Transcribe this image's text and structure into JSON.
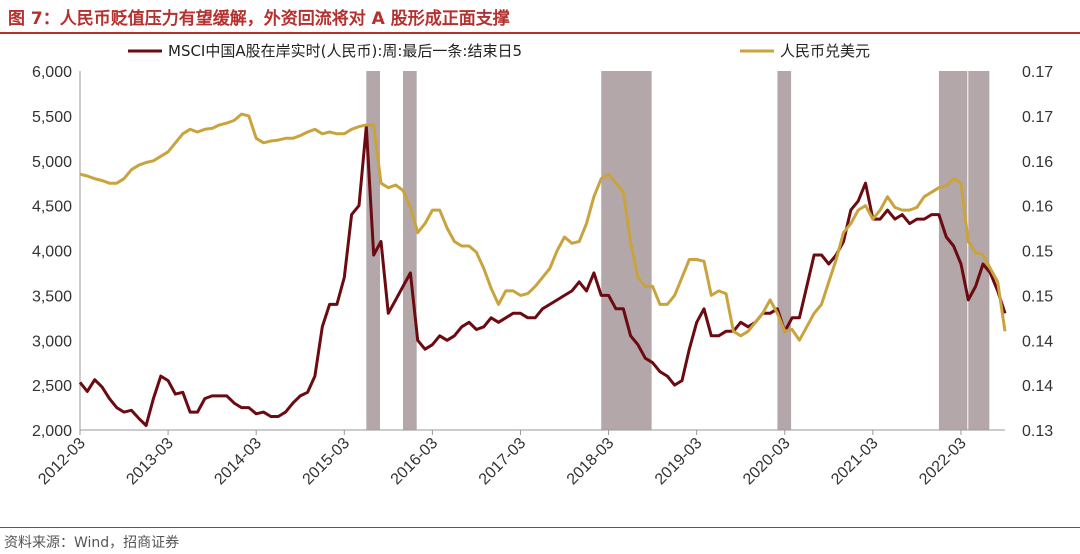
{
  "title": "图 7：人民币贬值压力有望缓解，外资回流将对 A 股形成正面支撑",
  "source": "资料来源：Wind，招商证券",
  "colors": {
    "accent": "#b5312f",
    "msci": "#6b0a10",
    "cny": "#c9a43e",
    "shade": "#b3a7a9"
  },
  "chart_data": {
    "type": "line",
    "y_left": {
      "min": 2000,
      "max": 6000,
      "ticks": [
        "2,000",
        "2,500",
        "3,000",
        "3,500",
        "4,000",
        "4,500",
        "5,000",
        "5,500",
        "6,000"
      ]
    },
    "y_right": {
      "min": 0.13,
      "max": 0.17,
      "ticks": [
        "0.13",
        "0.14",
        "0.14",
        "0.15",
        "0.15",
        "0.16",
        "0.16",
        "0.17",
        "0.17"
      ]
    },
    "x_range": [
      "2012-03",
      "2022-09"
    ],
    "x_ticks": [
      "2012-03",
      "2013-03",
      "2014-03",
      "2015-03",
      "2016-03",
      "2017-03",
      "2018-03",
      "2019-03",
      "2020-03",
      "2021-03",
      "2022-03"
    ],
    "shaded_periods": [
      [
        "2015-06",
        "2015-08"
      ],
      [
        "2015-11",
        "2016-01"
      ],
      [
        "2018-02",
        "2018-09"
      ],
      [
        "2020-02",
        "2020-04"
      ],
      [
        "2021-12",
        "2022-04"
      ],
      [
        "2022-04",
        "2022-07"
      ]
    ],
    "series": [
      {
        "name": "MSCI中国A股在岸实时(人民币):周:最后一条:结束日5",
        "axis": "left",
        "points": [
          [
            "2012-03",
            2530
          ],
          [
            "2012-04",
            2430
          ],
          [
            "2012-05",
            2560
          ],
          [
            "2012-06",
            2480
          ],
          [
            "2012-07",
            2350
          ],
          [
            "2012-08",
            2250
          ],
          [
            "2012-09",
            2200
          ],
          [
            "2012-10",
            2220
          ],
          [
            "2012-11",
            2130
          ],
          [
            "2012-12",
            2050
          ],
          [
            "2013-01",
            2350
          ],
          [
            "2013-02",
            2600
          ],
          [
            "2013-03",
            2550
          ],
          [
            "2013-04",
            2400
          ],
          [
            "2013-05",
            2420
          ],
          [
            "2013-06",
            2200
          ],
          [
            "2013-07",
            2200
          ],
          [
            "2013-08",
            2350
          ],
          [
            "2013-09",
            2380
          ],
          [
            "2013-10",
            2380
          ],
          [
            "2013-11",
            2380
          ],
          [
            "2013-12",
            2300
          ],
          [
            "2014-01",
            2250
          ],
          [
            "2014-02",
            2250
          ],
          [
            "2014-03",
            2180
          ],
          [
            "2014-04",
            2200
          ],
          [
            "2014-05",
            2150
          ],
          [
            "2014-06",
            2150
          ],
          [
            "2014-07",
            2200
          ],
          [
            "2014-08",
            2300
          ],
          [
            "2014-09",
            2380
          ],
          [
            "2014-10",
            2420
          ],
          [
            "2014-11",
            2600
          ],
          [
            "2014-12",
            3150
          ],
          [
            "2015-01",
            3400
          ],
          [
            "2015-02",
            3400
          ],
          [
            "2015-03",
            3700
          ],
          [
            "2015-04",
            4400
          ],
          [
            "2015-05",
            4500
          ],
          [
            "2015-06",
            5380
          ],
          [
            "2015-07",
            3950
          ],
          [
            "2015-08",
            4100
          ],
          [
            "2015-09",
            3300
          ],
          [
            "2015-10",
            3450
          ],
          [
            "2015-11",
            3600
          ],
          [
            "2015-12",
            3750
          ],
          [
            "2016-01",
            3000
          ],
          [
            "2016-02",
            2900
          ],
          [
            "2016-03",
            2950
          ],
          [
            "2016-04",
            3050
          ],
          [
            "2016-05",
            3000
          ],
          [
            "2016-06",
            3050
          ],
          [
            "2016-07",
            3150
          ],
          [
            "2016-08",
            3200
          ],
          [
            "2016-09",
            3120
          ],
          [
            "2016-10",
            3150
          ],
          [
            "2016-11",
            3250
          ],
          [
            "2016-12",
            3200
          ],
          [
            "2017-01",
            3250
          ],
          [
            "2017-02",
            3300
          ],
          [
            "2017-03",
            3300
          ],
          [
            "2017-04",
            3250
          ],
          [
            "2017-05",
            3250
          ],
          [
            "2017-06",
            3350
          ],
          [
            "2017-07",
            3400
          ],
          [
            "2017-08",
            3450
          ],
          [
            "2017-09",
            3500
          ],
          [
            "2017-10",
            3550
          ],
          [
            "2017-11",
            3650
          ],
          [
            "2017-12",
            3550
          ],
          [
            "2018-01",
            3750
          ],
          [
            "2018-02",
            3500
          ],
          [
            "2018-03",
            3500
          ],
          [
            "2018-04",
            3350
          ],
          [
            "2018-05",
            3350
          ],
          [
            "2018-06",
            3050
          ],
          [
            "2018-07",
            2950
          ],
          [
            "2018-08",
            2800
          ],
          [
            "2018-09",
            2750
          ],
          [
            "2018-10",
            2650
          ],
          [
            "2018-11",
            2600
          ],
          [
            "2018-12",
            2500
          ],
          [
            "2019-01",
            2550
          ],
          [
            "2019-02",
            2900
          ],
          [
            "2019-03",
            3200
          ],
          [
            "2019-04",
            3350
          ],
          [
            "2019-05",
            3050
          ],
          [
            "2019-06",
            3050
          ],
          [
            "2019-07",
            3100
          ],
          [
            "2019-08",
            3100
          ],
          [
            "2019-09",
            3200
          ],
          [
            "2019-10",
            3150
          ],
          [
            "2019-11",
            3200
          ],
          [
            "2019-12",
            3300
          ],
          [
            "2020-01",
            3300
          ],
          [
            "2020-02",
            3350
          ],
          [
            "2020-03",
            3100
          ],
          [
            "2020-04",
            3250
          ],
          [
            "2020-05",
            3250
          ],
          [
            "2020-06",
            3600
          ],
          [
            "2020-07",
            3950
          ],
          [
            "2020-08",
            3950
          ],
          [
            "2020-09",
            3850
          ],
          [
            "2020-10",
            3950
          ],
          [
            "2020-11",
            4100
          ],
          [
            "2020-12",
            4450
          ],
          [
            "2021-01",
            4550
          ],
          [
            "2021-02",
            4750
          ],
          [
            "2021-03",
            4350
          ],
          [
            "2021-04",
            4350
          ],
          [
            "2021-05",
            4450
          ],
          [
            "2021-06",
            4350
          ],
          [
            "2021-07",
            4400
          ],
          [
            "2021-08",
            4300
          ],
          [
            "2021-09",
            4350
          ],
          [
            "2021-10",
            4350
          ],
          [
            "2021-11",
            4400
          ],
          [
            "2021-12",
            4400
          ],
          [
            "2022-01",
            4150
          ],
          [
            "2022-02",
            4050
          ],
          [
            "2022-03",
            3850
          ],
          [
            "2022-04",
            3450
          ],
          [
            "2022-05",
            3600
          ],
          [
            "2022-06",
            3850
          ],
          [
            "2022-07",
            3750
          ],
          [
            "2022-08",
            3550
          ],
          [
            "2022-09",
            3300
          ]
        ]
      },
      {
        "name": "人民币兑美元",
        "axis": "right",
        "points": [
          [
            "2012-03",
            0.1585
          ],
          [
            "2012-04",
            0.1583
          ],
          [
            "2012-05",
            0.158
          ],
          [
            "2012-06",
            0.1578
          ],
          [
            "2012-07",
            0.1575
          ],
          [
            "2012-08",
            0.1575
          ],
          [
            "2012-09",
            0.158
          ],
          [
            "2012-10",
            0.159
          ],
          [
            "2012-11",
            0.1595
          ],
          [
            "2012-12",
            0.1598
          ],
          [
            "2013-01",
            0.16
          ],
          [
            "2013-02",
            0.1605
          ],
          [
            "2013-03",
            0.161
          ],
          [
            "2013-04",
            0.162
          ],
          [
            "2013-05",
            0.163
          ],
          [
            "2013-06",
            0.1635
          ],
          [
            "2013-07",
            0.1632
          ],
          [
            "2013-08",
            0.1635
          ],
          [
            "2013-09",
            0.1636
          ],
          [
            "2013-10",
            0.164
          ],
          [
            "2013-11",
            0.1642
          ],
          [
            "2013-12",
            0.1645
          ],
          [
            "2014-01",
            0.1652
          ],
          [
            "2014-02",
            0.165
          ],
          [
            "2014-03",
            0.1625
          ],
          [
            "2014-04",
            0.162
          ],
          [
            "2014-05",
            0.1622
          ],
          [
            "2014-06",
            0.1623
          ],
          [
            "2014-07",
            0.1625
          ],
          [
            "2014-08",
            0.1625
          ],
          [
            "2014-09",
            0.1628
          ],
          [
            "2014-10",
            0.1632
          ],
          [
            "2014-11",
            0.1635
          ],
          [
            "2014-12",
            0.163
          ],
          [
            "2015-01",
            0.1632
          ],
          [
            "2015-02",
            0.163
          ],
          [
            "2015-03",
            0.163
          ],
          [
            "2015-04",
            0.1635
          ],
          [
            "2015-05",
            0.1638
          ],
          [
            "2015-06",
            0.164
          ],
          [
            "2015-07",
            0.164
          ],
          [
            "2015-08",
            0.1575
          ],
          [
            "2015-09",
            0.157
          ],
          [
            "2015-10",
            0.1573
          ],
          [
            "2015-11",
            0.1567
          ],
          [
            "2015-12",
            0.1548
          ],
          [
            "2016-01",
            0.152
          ],
          [
            "2016-02",
            0.153
          ],
          [
            "2016-03",
            0.1545
          ],
          [
            "2016-04",
            0.1545
          ],
          [
            "2016-05",
            0.1525
          ],
          [
            "2016-06",
            0.151
          ],
          [
            "2016-07",
            0.1505
          ],
          [
            "2016-08",
            0.1505
          ],
          [
            "2016-09",
            0.1498
          ],
          [
            "2016-10",
            0.148
          ],
          [
            "2016-11",
            0.1458
          ],
          [
            "2016-12",
            0.144
          ],
          [
            "2017-01",
            0.1455
          ],
          [
            "2017-02",
            0.1455
          ],
          [
            "2017-03",
            0.145
          ],
          [
            "2017-04",
            0.1452
          ],
          [
            "2017-05",
            0.146
          ],
          [
            "2017-06",
            0.147
          ],
          [
            "2017-07",
            0.148
          ],
          [
            "2017-08",
            0.15
          ],
          [
            "2017-09",
            0.1515
          ],
          [
            "2017-10",
            0.1508
          ],
          [
            "2017-11",
            0.151
          ],
          [
            "2017-12",
            0.153
          ],
          [
            "2018-01",
            0.156
          ],
          [
            "2018-02",
            0.158
          ],
          [
            "2018-03",
            0.1585
          ],
          [
            "2018-04",
            0.1575
          ],
          [
            "2018-05",
            0.1565
          ],
          [
            "2018-06",
            0.151
          ],
          [
            "2018-07",
            0.147
          ],
          [
            "2018-08",
            0.146
          ],
          [
            "2018-09",
            0.146
          ],
          [
            "2018-10",
            0.144
          ],
          [
            "2018-11",
            0.144
          ],
          [
            "2018-12",
            0.145
          ],
          [
            "2019-01",
            0.147
          ],
          [
            "2019-02",
            0.149
          ],
          [
            "2019-03",
            0.149
          ],
          [
            "2019-04",
            0.1488
          ],
          [
            "2019-05",
            0.145
          ],
          [
            "2019-06",
            0.1455
          ],
          [
            "2019-07",
            0.1452
          ],
          [
            "2019-08",
            0.141
          ],
          [
            "2019-09",
            0.1405
          ],
          [
            "2019-10",
            0.141
          ],
          [
            "2019-11",
            0.142
          ],
          [
            "2019-12",
            0.143
          ],
          [
            "2020-01",
            0.1445
          ],
          [
            "2020-02",
            0.143
          ],
          [
            "2020-03",
            0.141
          ],
          [
            "2020-04",
            0.1412
          ],
          [
            "2020-05",
            0.14
          ],
          [
            "2020-06",
            0.1415
          ],
          [
            "2020-07",
            0.143
          ],
          [
            "2020-08",
            0.144
          ],
          [
            "2020-09",
            0.1465
          ],
          [
            "2020-10",
            0.149
          ],
          [
            "2020-11",
            0.152
          ],
          [
            "2020-12",
            0.153
          ],
          [
            "2021-01",
            0.1545
          ],
          [
            "2021-02",
            0.155
          ],
          [
            "2021-03",
            0.1535
          ],
          [
            "2021-04",
            0.1545
          ],
          [
            "2021-05",
            0.156
          ],
          [
            "2021-06",
            0.1548
          ],
          [
            "2021-07",
            0.1545
          ],
          [
            "2021-08",
            0.1545
          ],
          [
            "2021-09",
            0.1548
          ],
          [
            "2021-10",
            0.156
          ],
          [
            "2021-11",
            0.1565
          ],
          [
            "2021-12",
            0.157
          ],
          [
            "2022-01",
            0.1572
          ],
          [
            "2022-02",
            0.158
          ],
          [
            "2022-03",
            0.1575
          ],
          [
            "2022-04",
            0.151
          ],
          [
            "2022-05",
            0.1498
          ],
          [
            "2022-06",
            0.1495
          ],
          [
            "2022-07",
            0.148
          ],
          [
            "2022-08",
            0.1465
          ],
          [
            "2022-09",
            0.141
          ]
        ]
      }
    ]
  }
}
